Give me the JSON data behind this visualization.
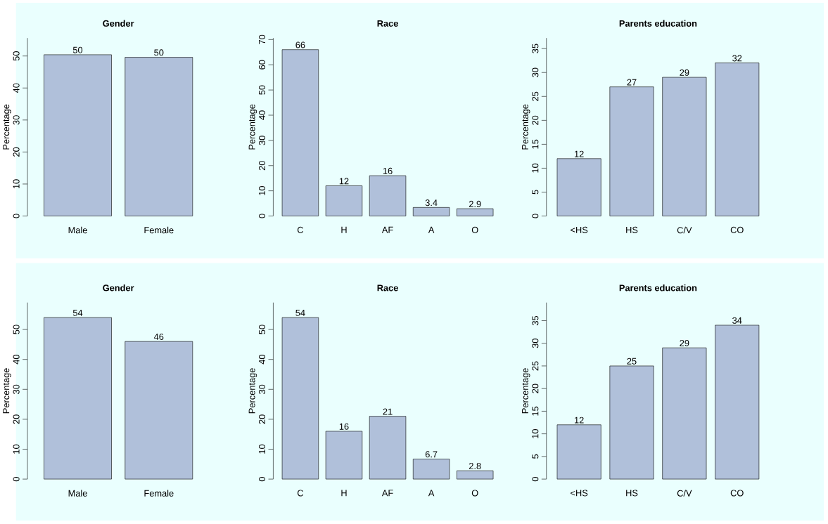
{
  "chart_data": [
    {
      "type": "bar",
      "title": "Gender",
      "ylabel": "Percentage",
      "categories": [
        "Male",
        "Female"
      ],
      "values": [
        50.4,
        49.6
      ],
      "value_labels": [
        "50",
        "50"
      ],
      "color": "#b0c0da",
      "ylim": [
        0,
        55.6
      ],
      "yticks": [
        0,
        10,
        20,
        30,
        40,
        50
      ]
    },
    {
      "type": "bar",
      "title": "Race",
      "ylabel": "Percentage",
      "categories": [
        "C",
        "H",
        "AF",
        "A",
        "O"
      ],
      "values": [
        66,
        12,
        16,
        3.4,
        2.9
      ],
      "data_labels": true,
      "color": "#b0c0da",
      "ylim": [
        0,
        70.6
      ],
      "yticks": [
        0,
        10,
        20,
        30,
        40,
        50,
        60,
        70
      ]
    },
    {
      "type": "bar",
      "title": "Parents education",
      "ylabel": "Percentage",
      "categories": [
        "<HS",
        "HS",
        "C/V",
        "CO"
      ],
      "values": [
        12,
        27,
        29,
        32
      ],
      "data_labels": true,
      "color": "#b0c0da",
      "ylim": [
        0,
        37.2
      ],
      "yticks": [
        0,
        5,
        10,
        15,
        20,
        25,
        30,
        35
      ]
    },
    {
      "type": "bar",
      "title": "Gender",
      "ylabel": "Percentage",
      "categories": [
        "Male",
        "Female"
      ],
      "values": [
        54,
        46
      ],
      "data_labels": true,
      "color": "#b0c0da",
      "ylim": [
        0,
        59
      ],
      "yticks": [
        0,
        10,
        20,
        30,
        40,
        50
      ]
    },
    {
      "type": "bar",
      "title": "Race",
      "ylabel": "Percentage",
      "categories": [
        "C",
        "H",
        "AF",
        "A",
        "O"
      ],
      "values": [
        54,
        16,
        21,
        6.7,
        2.8
      ],
      "data_labels": true,
      "color": "#b0c0da",
      "ylim": [
        0,
        59
      ],
      "yticks": [
        0,
        10,
        20,
        30,
        40,
        50
      ]
    },
    {
      "type": "bar",
      "title": "Parents education",
      "ylabel": "Percentage",
      "categories": [
        "<HS",
        "HS",
        "C/V",
        "CO"
      ],
      "values": [
        12,
        25,
        29,
        34
      ],
      "data_labels": true,
      "color": "#b0c0da",
      "ylim": [
        0,
        39
      ],
      "yticks": [
        0,
        5,
        10,
        15,
        20,
        25,
        30,
        35
      ]
    }
  ]
}
